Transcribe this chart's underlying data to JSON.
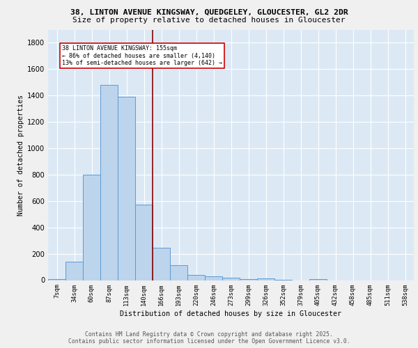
{
  "title1": "38, LINTON AVENUE KINGSWAY, QUEDGELEY, GLOUCESTER, GL2 2DR",
  "title2": "Size of property relative to detached houses in Gloucester",
  "xlabel": "Distribution of detached houses by size in Gloucester",
  "ylabel": "Number of detached properties",
  "bar_labels": [
    "7sqm",
    "34sqm",
    "60sqm",
    "87sqm",
    "113sqm",
    "140sqm",
    "166sqm",
    "193sqm",
    "220sqm",
    "246sqm",
    "273sqm",
    "299sqm",
    "326sqm",
    "352sqm",
    "379sqm",
    "405sqm",
    "432sqm",
    "458sqm",
    "485sqm",
    "511sqm",
    "538sqm"
  ],
  "bar_values": [
    10,
    140,
    800,
    1480,
    1390,
    575,
    248,
    115,
    40,
    28,
    20,
    10,
    13,
    5,
    0,
    10,
    0,
    0,
    0,
    0,
    0
  ],
  "bar_color": "#bcd4ec",
  "bar_edge_color": "#5b9bd5",
  "background_color": "#dce9f5",
  "grid_color": "#ffffff",
  "vline_x": 5.5,
  "vline_color": "#8b0000",
  "annotation_text": "38 LINTON AVENUE KINGSWAY: 155sqm\n← 86% of detached houses are smaller (4,140)\n13% of semi-detached houses are larger (642) →",
  "annotation_box_color": "#ffffff",
  "annotation_box_edge": "#cc0000",
  "footer_text": "Contains HM Land Registry data © Crown copyright and database right 2025.\nContains public sector information licensed under the Open Government Licence v3.0.",
  "fig_background": "#f0f0f0",
  "ylim": [
    0,
    1900
  ],
  "yticks": [
    0,
    200,
    400,
    600,
    800,
    1000,
    1200,
    1400,
    1600,
    1800
  ]
}
